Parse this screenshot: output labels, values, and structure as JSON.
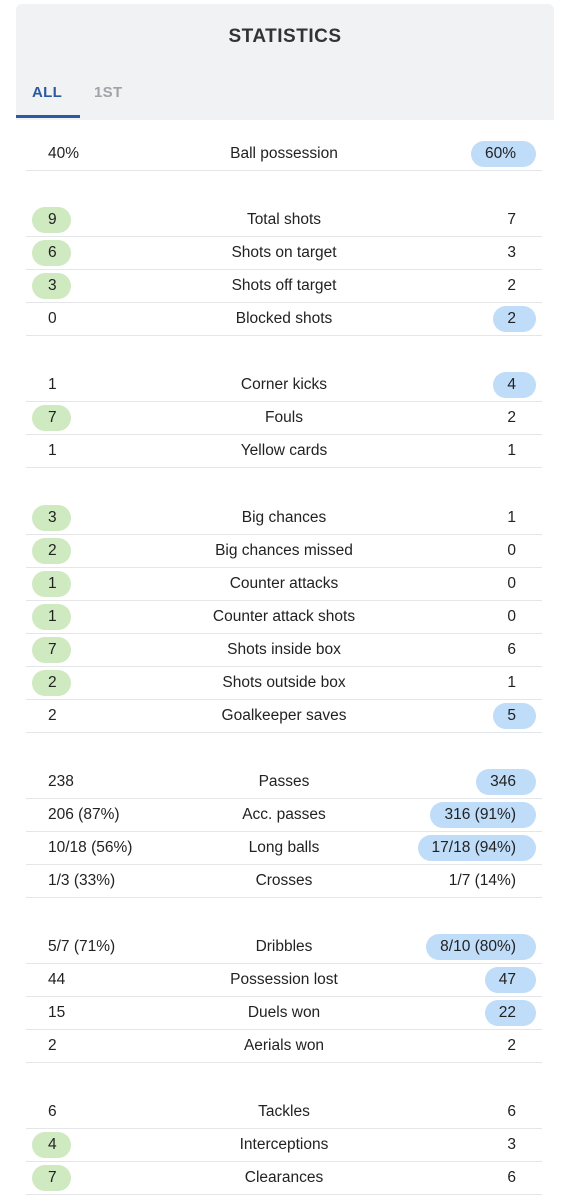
{
  "header": {
    "title": "STATISTICS",
    "tabs": [
      "ALL",
      "1ST"
    ]
  },
  "colors": {
    "home_highlight": "#cfe9c0",
    "away_highlight": "#bfdcf8",
    "accent": "#2c5aa0"
  },
  "stats": [
    {
      "label": "Ball possession",
      "home": "40%",
      "away": "60%",
      "highlight": "away"
    },
    {
      "label": "Total shots",
      "home": "9",
      "away": "7",
      "highlight": "home"
    },
    {
      "label": "Shots on target",
      "home": "6",
      "away": "3",
      "highlight": "home"
    },
    {
      "label": "Shots off target",
      "home": "3",
      "away": "2",
      "highlight": "home"
    },
    {
      "label": "Blocked shots",
      "home": "0",
      "away": "2",
      "highlight": "away"
    },
    {
      "label": "Corner kicks",
      "home": "1",
      "away": "4",
      "highlight": "away"
    },
    {
      "label": "Fouls",
      "home": "7",
      "away": "2",
      "highlight": "home"
    },
    {
      "label": "Yellow cards",
      "home": "1",
      "away": "1",
      "highlight": "none"
    },
    {
      "label": "Big chances",
      "home": "3",
      "away": "1",
      "highlight": "home"
    },
    {
      "label": "Big chances missed",
      "home": "2",
      "away": "0",
      "highlight": "home"
    },
    {
      "label": "Counter attacks",
      "home": "1",
      "away": "0",
      "highlight": "home"
    },
    {
      "label": "Counter attack shots",
      "home": "1",
      "away": "0",
      "highlight": "home"
    },
    {
      "label": "Shots inside box",
      "home": "7",
      "away": "6",
      "highlight": "home"
    },
    {
      "label": "Shots outside box",
      "home": "2",
      "away": "1",
      "highlight": "home"
    },
    {
      "label": "Goalkeeper saves",
      "home": "2",
      "away": "5",
      "highlight": "away"
    },
    {
      "label": "Passes",
      "home": "238",
      "away": "346",
      "highlight": "away"
    },
    {
      "label": "Acc. passes",
      "home": "206 (87%)",
      "away": "316 (91%)",
      "highlight": "away"
    },
    {
      "label": "Long balls",
      "home": "10/18 (56%)",
      "away": "17/18 (94%)",
      "highlight": "away"
    },
    {
      "label": "Crosses",
      "home": "1/3 (33%)",
      "away": "1/7 (14%)",
      "highlight": "none"
    },
    {
      "label": "Dribbles",
      "home": "5/7 (71%)",
      "away": "8/10 (80%)",
      "highlight": "away"
    },
    {
      "label": "Possession lost",
      "home": "44",
      "away": "47",
      "highlight": "away"
    },
    {
      "label": "Duels won",
      "home": "15",
      "away": "22",
      "highlight": "away"
    },
    {
      "label": "Aerials won",
      "home": "2",
      "away": "2",
      "highlight": "none"
    },
    {
      "label": "Tackles",
      "home": "6",
      "away": "6",
      "highlight": "none"
    },
    {
      "label": "Interceptions",
      "home": "4",
      "away": "3",
      "highlight": "home"
    },
    {
      "label": "Clearances",
      "home": "7",
      "away": "6",
      "highlight": "home"
    }
  ]
}
